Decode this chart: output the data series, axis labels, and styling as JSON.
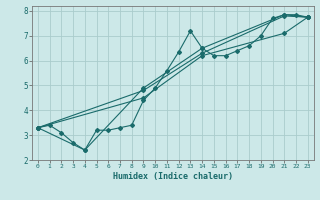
{
  "xlabel": "Humidex (Indice chaleur)",
  "ylabel": "",
  "background_color": "#cce8e8",
  "grid_color": "#aacccc",
  "line_color": "#1a6b6b",
  "xlim": [
    -0.5,
    23.5
  ],
  "ylim": [
    2,
    8.2
  ],
  "xticks": [
    0,
    1,
    2,
    3,
    4,
    5,
    6,
    7,
    8,
    9,
    10,
    11,
    12,
    13,
    14,
    15,
    16,
    17,
    18,
    19,
    20,
    21,
    22,
    23
  ],
  "yticks": [
    2,
    3,
    4,
    5,
    6,
    7,
    8
  ],
  "lines": [
    {
      "x": [
        0,
        1,
        2,
        3,
        4,
        5,
        6,
        7,
        8,
        9,
        10,
        11,
        12,
        13,
        14,
        15,
        16,
        17,
        18,
        19,
        20,
        21,
        22,
        23
      ],
      "y": [
        3.3,
        3.4,
        3.1,
        2.7,
        2.4,
        3.2,
        3.2,
        3.3,
        3.4,
        4.4,
        4.9,
        5.6,
        6.35,
        7.2,
        6.5,
        6.2,
        6.2,
        6.4,
        6.6,
        7.0,
        7.7,
        7.85,
        7.85,
        7.75
      ]
    },
    {
      "x": [
        0,
        9,
        14,
        21,
        23
      ],
      "y": [
        3.3,
        4.8,
        6.3,
        7.8,
        7.75
      ]
    },
    {
      "x": [
        0,
        4,
        9,
        14,
        21,
        23
      ],
      "y": [
        3.3,
        2.4,
        4.9,
        6.5,
        7.85,
        7.75
      ]
    },
    {
      "x": [
        0,
        9,
        14,
        21,
        23
      ],
      "y": [
        3.3,
        4.5,
        6.2,
        7.1,
        7.75
      ]
    }
  ]
}
